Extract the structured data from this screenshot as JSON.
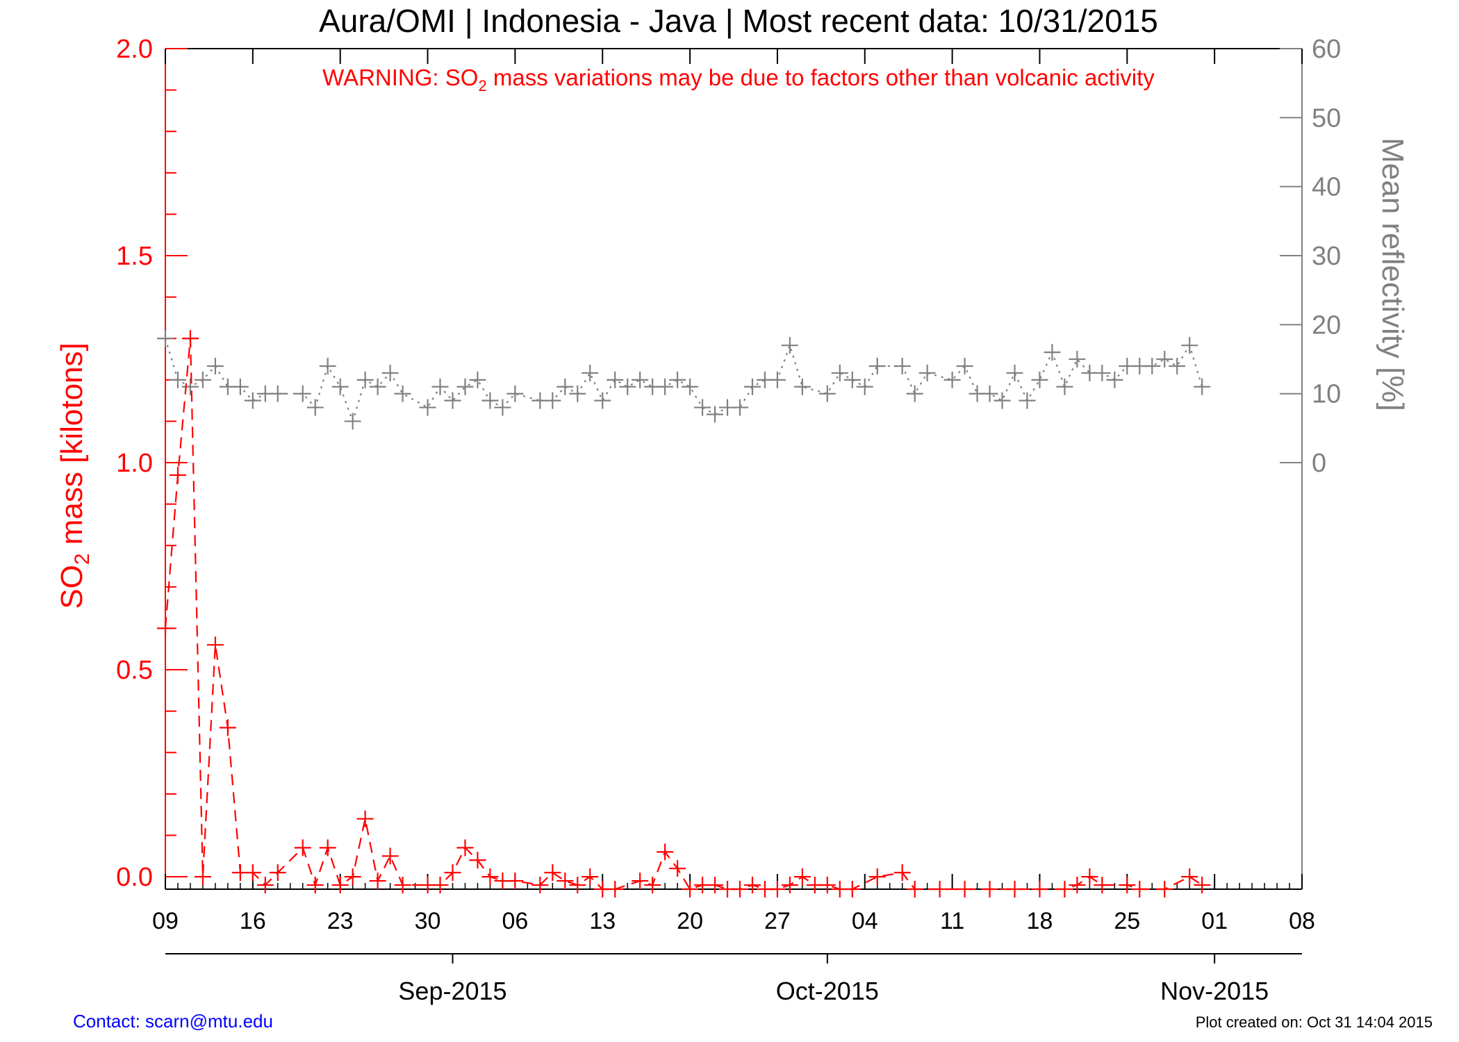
{
  "chart_data": {
    "type": "line",
    "title": "Aura/OMI | Indonesia - Java | Most recent data: 10/31/2015",
    "warning": {
      "prefix": "WARNING: SO",
      "subscript": "2",
      "suffix": " mass variations may be due to factors other than volcanic activity"
    },
    "ylabel_left": {
      "prefix": "SO",
      "subscript": "2",
      "suffix": " mass [kilotons]"
    },
    "ylabel_right": "Mean reflectivity [%]",
    "ylim_left": [
      -0.03,
      2.0
    ],
    "ylim_right_ticks": [
      0,
      10,
      20,
      30,
      40,
      50,
      60
    ],
    "left_ticks": [
      "0.0",
      "0.5",
      "1.0",
      "1.5",
      "2.0"
    ],
    "right_ticks": [
      "0",
      "10",
      "20",
      "30",
      "40",
      "50",
      "60"
    ],
    "x_tick_labels": [
      "09",
      "16",
      "23",
      "30",
      "06",
      "13",
      "20",
      "27",
      "04",
      "11",
      "18",
      "25",
      "01",
      "08"
    ],
    "x_tick_dates": [
      "2015-08-09",
      "2015-08-16",
      "2015-08-23",
      "2015-08-30",
      "2015-09-06",
      "2015-09-13",
      "2015-09-20",
      "2015-09-27",
      "2015-10-04",
      "2015-10-11",
      "2015-10-18",
      "2015-10-25",
      "2015-11-01",
      "2015-11-08"
    ],
    "month_labels": [
      "Sep-2015",
      "Oct-2015",
      "Nov-2015"
    ],
    "month_dates": [
      "2015-09-01",
      "2015-10-01",
      "2015-11-01"
    ],
    "x_range": [
      "2015-08-09",
      "2015-11-08"
    ],
    "series": [
      {
        "name": "SO2 mass",
        "axis": "left",
        "color": "#ff0000",
        "style": "dashed",
        "marker": "plus",
        "points": [
          [
            "2015-08-09",
            0.6
          ],
          [
            "2015-08-10",
            0.97
          ],
          [
            "2015-08-11",
            1.3
          ],
          [
            "2015-08-12",
            0.0
          ],
          [
            "2015-08-13",
            0.56
          ],
          [
            "2015-08-14",
            0.36
          ],
          [
            "2015-08-15",
            0.01
          ],
          [
            "2015-08-16",
            0.01
          ],
          [
            "2015-08-17",
            -0.02
          ],
          [
            "2015-08-18",
            0.01
          ],
          [
            "2015-08-20",
            0.07
          ],
          [
            "2015-08-21",
            -0.02
          ],
          [
            "2015-08-22",
            0.07
          ],
          [
            "2015-08-23",
            -0.02
          ],
          [
            "2015-08-24",
            0.0
          ],
          [
            "2015-08-25",
            0.14
          ],
          [
            "2015-08-26",
            -0.01
          ],
          [
            "2015-08-27",
            0.05
          ],
          [
            "2015-08-28",
            -0.02
          ],
          [
            "2015-08-30",
            -0.02
          ],
          [
            "2015-08-31",
            -0.02
          ],
          [
            "2015-09-01",
            0.01
          ],
          [
            "2015-09-02",
            0.07
          ],
          [
            "2015-09-03",
            0.04
          ],
          [
            "2015-09-04",
            0.0
          ],
          [
            "2015-09-05",
            -0.01
          ],
          [
            "2015-09-06",
            -0.01
          ],
          [
            "2015-09-08",
            -0.02
          ],
          [
            "2015-09-09",
            0.01
          ],
          [
            "2015-09-10",
            -0.01
          ],
          [
            "2015-09-11",
            -0.02
          ],
          [
            "2015-09-12",
            0.0
          ],
          [
            "2015-09-13",
            -0.03
          ],
          [
            "2015-09-14",
            -0.03
          ],
          [
            "2015-09-16",
            -0.01
          ],
          [
            "2015-09-17",
            -0.02
          ],
          [
            "2015-09-18",
            0.06
          ],
          [
            "2015-09-19",
            0.02
          ],
          [
            "2015-09-20",
            -0.03
          ],
          [
            "2015-09-21",
            -0.02
          ],
          [
            "2015-09-22",
            -0.02
          ],
          [
            "2015-09-23",
            -0.03
          ],
          [
            "2015-09-24",
            -0.03
          ],
          [
            "2015-09-25",
            -0.02
          ],
          [
            "2015-09-26",
            -0.03
          ],
          [
            "2015-09-27",
            -0.03
          ],
          [
            "2015-09-28",
            -0.02
          ],
          [
            "2015-09-29",
            0.0
          ],
          [
            "2015-09-30",
            -0.02
          ],
          [
            "2015-10-01",
            -0.02
          ],
          [
            "2015-10-02",
            -0.03
          ],
          [
            "2015-10-03",
            -0.03
          ],
          [
            "2015-10-05",
            0.0
          ],
          [
            "2015-10-07",
            0.01
          ],
          [
            "2015-10-08",
            -0.03
          ],
          [
            "2015-10-10",
            -0.03
          ],
          [
            "2015-10-12",
            -0.03
          ],
          [
            "2015-10-14",
            -0.03
          ],
          [
            "2015-10-16",
            -0.03
          ],
          [
            "2015-10-18",
            -0.03
          ],
          [
            "2015-10-20",
            -0.03
          ],
          [
            "2015-10-21",
            -0.02
          ],
          [
            "2015-10-22",
            0.0
          ],
          [
            "2015-10-23",
            -0.02
          ],
          [
            "2015-10-25",
            -0.02
          ],
          [
            "2015-10-26",
            -0.03
          ],
          [
            "2015-10-28",
            -0.03
          ],
          [
            "2015-10-30",
            0.0
          ],
          [
            "2015-10-31",
            -0.02
          ]
        ]
      },
      {
        "name": "Mean reflectivity",
        "axis": "right",
        "color": "#808080",
        "style": "dotted",
        "marker": "plus",
        "points": [
          [
            "2015-08-09",
            18
          ],
          [
            "2015-08-10",
            12
          ],
          [
            "2015-08-11",
            11
          ],
          [
            "2015-08-12",
            12
          ],
          [
            "2015-08-13",
            14
          ],
          [
            "2015-08-14",
            11
          ],
          [
            "2015-08-15",
            11
          ],
          [
            "2015-08-16",
            9
          ],
          [
            "2015-08-17",
            10
          ],
          [
            "2015-08-18",
            10
          ],
          [
            "2015-08-20",
            10
          ],
          [
            "2015-08-21",
            8
          ],
          [
            "2015-08-22",
            14
          ],
          [
            "2015-08-23",
            11
          ],
          [
            "2015-08-24",
            6
          ],
          [
            "2015-08-25",
            12
          ],
          [
            "2015-08-26",
            11
          ],
          [
            "2015-08-27",
            13
          ],
          [
            "2015-08-28",
            10
          ],
          [
            "2015-08-30",
            8
          ],
          [
            "2015-08-31",
            11
          ],
          [
            "2015-09-01",
            9
          ],
          [
            "2015-09-02",
            11
          ],
          [
            "2015-09-03",
            12
          ],
          [
            "2015-09-04",
            9
          ],
          [
            "2015-09-05",
            8
          ],
          [
            "2015-09-06",
            10
          ],
          [
            "2015-09-08",
            9
          ],
          [
            "2015-09-09",
            9
          ],
          [
            "2015-09-10",
            11
          ],
          [
            "2015-09-11",
            10
          ],
          [
            "2015-09-12",
            13
          ],
          [
            "2015-09-13",
            9
          ],
          [
            "2015-09-14",
            12
          ],
          [
            "2015-09-15",
            11
          ],
          [
            "2015-09-16",
            12
          ],
          [
            "2015-09-17",
            11
          ],
          [
            "2015-09-18",
            11
          ],
          [
            "2015-09-19",
            12
          ],
          [
            "2015-09-20",
            11
          ],
          [
            "2015-09-21",
            8
          ],
          [
            "2015-09-22",
            7
          ],
          [
            "2015-09-23",
            8
          ],
          [
            "2015-09-24",
            8
          ],
          [
            "2015-09-25",
            11
          ],
          [
            "2015-09-26",
            12
          ],
          [
            "2015-09-27",
            12
          ],
          [
            "2015-09-28",
            17
          ],
          [
            "2015-09-29",
            11
          ],
          [
            "2015-10-01",
            10
          ],
          [
            "2015-10-02",
            13
          ],
          [
            "2015-10-03",
            12
          ],
          [
            "2015-10-04",
            11
          ],
          [
            "2015-10-05",
            14
          ],
          [
            "2015-10-07",
            14
          ],
          [
            "2015-10-08",
            10
          ],
          [
            "2015-10-09",
            13
          ],
          [
            "2015-10-11",
            12
          ],
          [
            "2015-10-12",
            14
          ],
          [
            "2015-10-13",
            10
          ],
          [
            "2015-10-14",
            10
          ],
          [
            "2015-10-15",
            9
          ],
          [
            "2015-10-16",
            13
          ],
          [
            "2015-10-17",
            9
          ],
          [
            "2015-10-18",
            12
          ],
          [
            "2015-10-19",
            16
          ],
          [
            "2015-10-20",
            11
          ],
          [
            "2015-10-21",
            15
          ],
          [
            "2015-10-22",
            13
          ],
          [
            "2015-10-23",
            13
          ],
          [
            "2015-10-24",
            12
          ],
          [
            "2015-10-25",
            14
          ],
          [
            "2015-10-26",
            14
          ],
          [
            "2015-10-27",
            14
          ],
          [
            "2015-10-28",
            15
          ],
          [
            "2015-10-29",
            14
          ],
          [
            "2015-10-30",
            17
          ],
          [
            "2015-10-31",
            11
          ]
        ]
      }
    ]
  },
  "footer": {
    "contact": "Contact: scarn@mtu.edu",
    "created": "Plot created on: Oct 31 14:04 2015"
  }
}
